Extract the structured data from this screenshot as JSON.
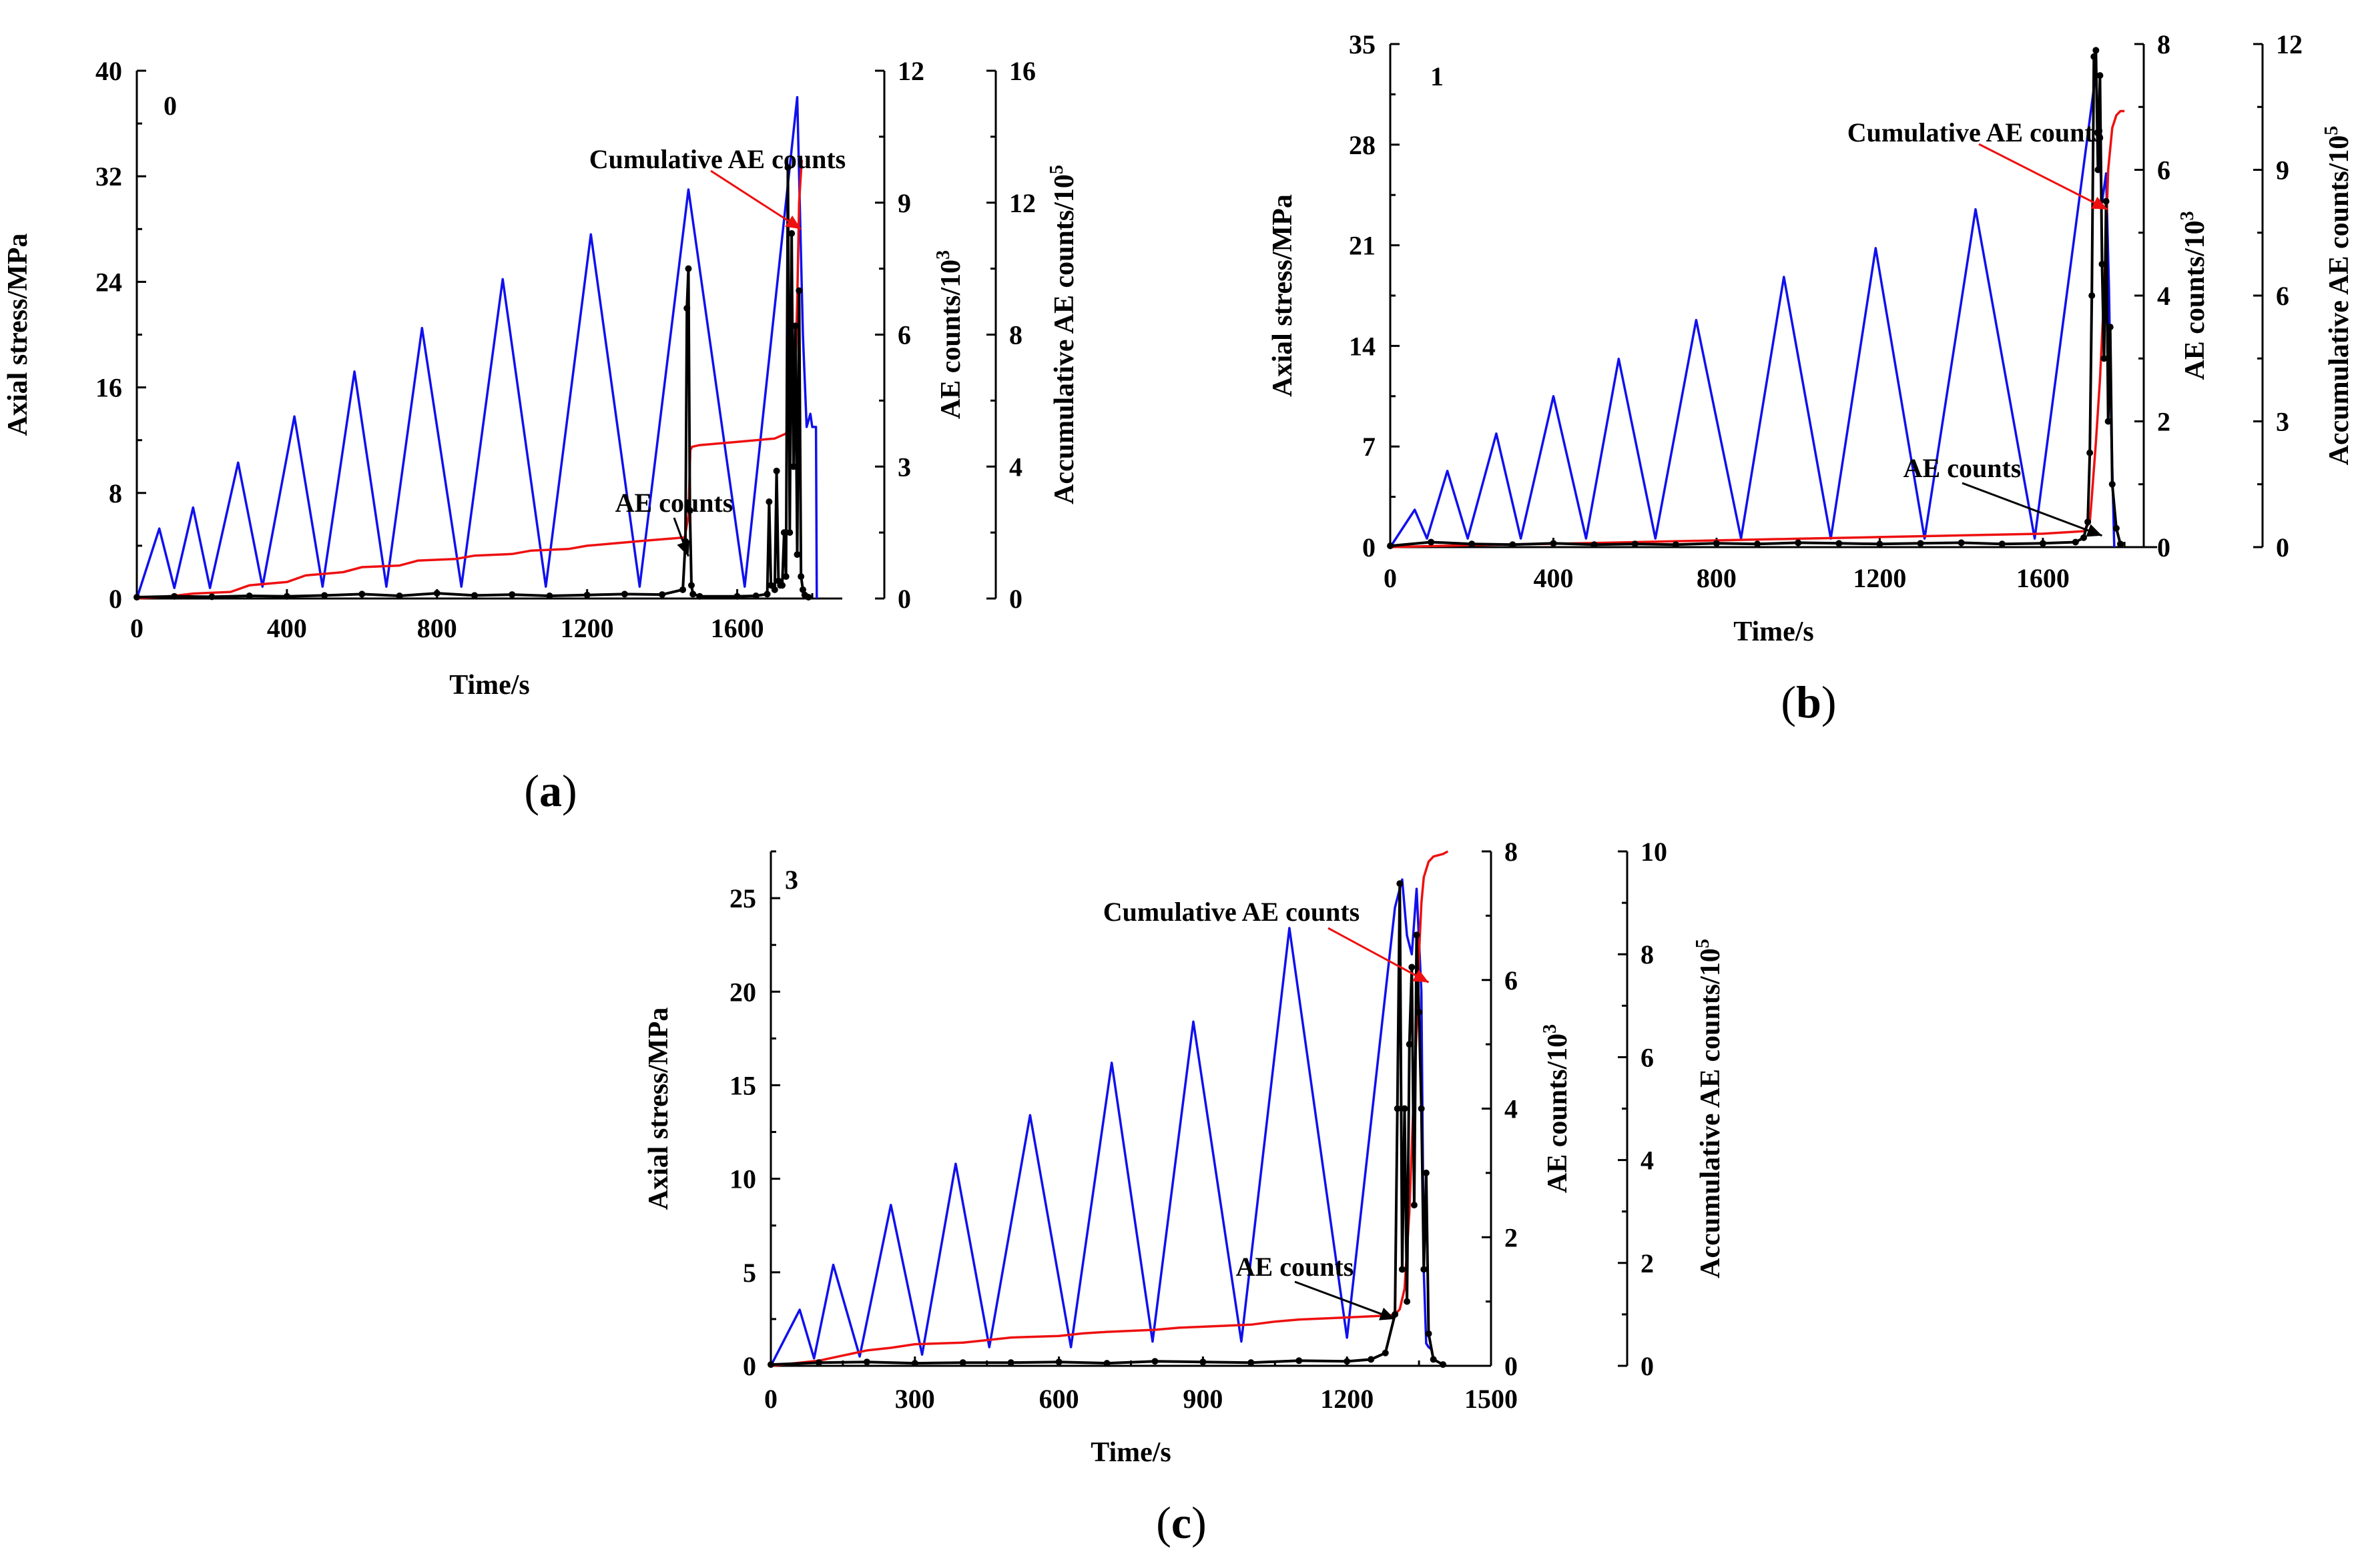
{
  "chart_data": [
    {
      "type": "line",
      "panel_caption": "(a)",
      "caption_parts": [
        "(",
        "a",
        ")"
      ],
      "panel_number": "0",
      "xlabel": "Time/s",
      "ylabel": "Axial stress/MPa",
      "y2label_main": "AE counts/10",
      "y2label_exp": "3",
      "y3label_main": "Accumulative AE counts/10",
      "y3label_exp": "5",
      "xlim": [
        0,
        1880
      ],
      "xticks": [
        "0",
        "400",
        "800",
        "1200",
        "1600"
      ],
      "xtick_values": [
        0,
        400,
        800,
        1200,
        1600
      ],
      "ylim": [
        0,
        40
      ],
      "yticks": [
        "0",
        "8",
        "16",
        "24",
        "32",
        "40"
      ],
      "ytick_values": [
        0,
        8,
        16,
        24,
        32,
        40
      ],
      "y2lim": [
        0,
        12
      ],
      "y2ticks": [
        "0",
        "3",
        "6",
        "9",
        "12"
      ],
      "y2tick_values": [
        0,
        3,
        6,
        9,
        12
      ],
      "y3lim": [
        0,
        16
      ],
      "y3ticks": [
        "0",
        "4",
        "8",
        "12",
        "16"
      ],
      "y3tick_values": [
        0,
        4,
        8,
        12,
        16
      ],
      "annotations": [
        "Cumulative AE counts",
        "AE counts"
      ],
      "annotation_targets": [
        {
          "x": 1770,
          "y": 28
        },
        {
          "x": 1470,
          "y": 3.2
        }
      ],
      "series": [
        {
          "name": "Axial stress",
          "color": "#1010ee",
          "axis": "left",
          "x": [
            0,
            60,
            100,
            150,
            195,
            270,
            335,
            420,
            495,
            580,
            665,
            760,
            865,
            975,
            1090,
            1210,
            1340,
            1470,
            1620,
            1760,
            1775,
            1785,
            1795,
            1800,
            1810,
            1812
          ],
          "values": [
            0,
            5.3,
            0.8,
            6.9,
            0.8,
            10.3,
            0.9,
            13.8,
            0.9,
            17.2,
            0.9,
            20.5,
            0.9,
            24.2,
            0.9,
            27.6,
            0.9,
            31.0,
            0.9,
            38.0,
            20.0,
            13.0,
            14.0,
            13.0,
            13.0,
            0
          ]
        },
        {
          "name": "Cumulative AE counts",
          "color": "#ee1010",
          "axis": "right2",
          "x": [
            0,
            100,
            150,
            250,
            300,
            400,
            450,
            550,
            600,
            700,
            750,
            850,
            900,
            1000,
            1050,
            1150,
            1200,
            1300,
            1350,
            1460,
            1470,
            1475,
            1480,
            1500,
            1600,
            1700,
            1730,
            1740,
            1755,
            1760,
            1765,
            1772
          ],
          "values": [
            0,
            0.08,
            0.15,
            0.2,
            0.4,
            0.5,
            0.7,
            0.8,
            0.95,
            1.0,
            1.15,
            1.2,
            1.3,
            1.35,
            1.45,
            1.5,
            1.6,
            1.7,
            1.75,
            1.85,
            2.5,
            4.5,
            4.6,
            4.65,
            4.75,
            4.85,
            5.0,
            5.4,
            7.0,
            9.0,
            12.0,
            13.3
          ]
        },
        {
          "name": "AE counts",
          "color": "#000000",
          "axis": "right1",
          "x": [
            0,
            100,
            200,
            300,
            400,
            500,
            600,
            700,
            800,
            900,
            1000,
            1100,
            1200,
            1300,
            1400,
            1455,
            1462,
            1466,
            1470,
            1474,
            1478,
            1482,
            1500,
            1600,
            1650,
            1680,
            1685,
            1690,
            1700,
            1705,
            1710,
            1715,
            1720,
            1725,
            1730,
            1735,
            1740,
            1745,
            1750,
            1755,
            1760,
            1765,
            1770,
            1775,
            1780,
            1790
          ],
          "values": [
            0.03,
            0.05,
            0.04,
            0.06,
            0.05,
            0.07,
            0.1,
            0.06,
            0.12,
            0.07,
            0.09,
            0.06,
            0.08,
            0.1,
            0.09,
            0.2,
            1.3,
            6.6,
            7.5,
            2.0,
            0.3,
            0.1,
            0.05,
            0.05,
            0.06,
            0.1,
            2.2,
            0.3,
            0.2,
            2.9,
            0.4,
            0.3,
            0.3,
            1.5,
            0.5,
            9.8,
            1.5,
            8.3,
            3.0,
            6.2,
            1.0,
            7.0,
            0.5,
            0.2,
            0.08,
            0.03
          ]
        }
      ]
    },
    {
      "type": "line",
      "panel_caption": "(b)",
      "caption_parts": [
        "(",
        "b",
        ")"
      ],
      "panel_number": "1",
      "xlabel": "Time/s",
      "ylabel": "Axial stress/MPa",
      "y2label_main": "AE counts/10",
      "y2label_exp": "3",
      "y3label_main": "Accumulative AE counts/10",
      "y3label_exp": "5",
      "xlim": [
        0,
        1880
      ],
      "xticks": [
        "0",
        "400",
        "800",
        "1200",
        "1600"
      ],
      "xtick_values": [
        0,
        400,
        800,
        1200,
        1600
      ],
      "ylim": [
        0,
        35
      ],
      "yticks": [
        "0",
        "7",
        "14",
        "21",
        "28",
        "35"
      ],
      "ytick_values": [
        0,
        7,
        14,
        21,
        28,
        35
      ],
      "y2lim": [
        0,
        8
      ],
      "y2ticks": [
        "0",
        "2",
        "4",
        "6",
        "8"
      ],
      "y2tick_values": [
        0,
        2,
        4,
        6,
        8
      ],
      "y3lim": [
        0,
        12
      ],
      "y3ticks": [
        "0",
        "3",
        "6",
        "9",
        "12"
      ],
      "y3tick_values": [
        0,
        3,
        6,
        9,
        12
      ],
      "annotations": [
        "Cumulative AE counts",
        "AE counts"
      ],
      "annotation_targets": [
        {
          "x": 1758,
          "y": 23.5
        },
        {
          "x": 1745,
          "y": 0.8
        }
      ],
      "series": [
        {
          "name": "Axial stress",
          "color": "#1010ee",
          "axis": "left",
          "x": [
            0,
            60,
            90,
            140,
            190,
            260,
            320,
            400,
            480,
            560,
            650,
            750,
            860,
            965,
            1080,
            1190,
            1310,
            1435,
            1580,
            1730,
            1745,
            1755,
            1762,
            1768,
            1775
          ],
          "values": [
            0,
            2.6,
            0.6,
            5.3,
            0.6,
            7.9,
            0.6,
            10.5,
            0.6,
            13.1,
            0.6,
            15.8,
            0.6,
            18.8,
            0.6,
            20.8,
            0.6,
            23.5,
            0.6,
            33.0,
            24.0,
            26.0,
            18.0,
            8.0,
            0
          ]
        },
        {
          "name": "Cumulative AE counts",
          "color": "#ee1010",
          "axis": "right2",
          "x": [
            0,
            200,
            400,
            600,
            800,
            1000,
            1200,
            1400,
            1600,
            1700,
            1715,
            1720,
            1730,
            1740,
            1750,
            1755,
            1760,
            1770,
            1780,
            1790,
            1800
          ],
          "values": [
            0,
            0.05,
            0.08,
            0.12,
            0.16,
            0.2,
            0.24,
            0.28,
            0.32,
            0.38,
            0.6,
            1.2,
            2.5,
            4.0,
            6.0,
            7.5,
            9.0,
            10.0,
            10.3,
            10.4,
            10.4
          ]
        },
        {
          "name": "AE counts",
          "color": "#000000",
          "axis": "right1",
          "x": [
            0,
            100,
            200,
            300,
            400,
            500,
            600,
            700,
            800,
            900,
            1000,
            1100,
            1200,
            1300,
            1400,
            1500,
            1600,
            1680,
            1700,
            1710,
            1715,
            1720,
            1725,
            1730,
            1735,
            1740,
            1745,
            1750,
            1755,
            1760,
            1765,
            1770,
            1780,
            1790
          ],
          "values": [
            0.02,
            0.08,
            0.05,
            0.04,
            0.06,
            0.04,
            0.05,
            0.04,
            0.06,
            0.05,
            0.07,
            0.06,
            0.05,
            0.06,
            0.07,
            0.05,
            0.06,
            0.08,
            0.15,
            0.4,
            1.5,
            4.0,
            7.8,
            7.9,
            6.0,
            7.5,
            4.5,
            3.0,
            5.5,
            2.0,
            3.5,
            1.0,
            0.3,
            0.05
          ]
        }
      ]
    },
    {
      "type": "line",
      "panel_caption": "(c)",
      "caption_parts": [
        "(",
        "c",
        ")"
      ],
      "panel_number": "3",
      "xlabel": "Time/s",
      "ylabel": "Axial stress/MPa",
      "y2label_main": "AE counts/10",
      "y2label_exp": "3",
      "y3label_main": "Accumulative AE counts/10",
      "y3label_exp": "5",
      "xlim": [
        0,
        1500
      ],
      "xticks": [
        "0",
        "300",
        "600",
        "900",
        "1200",
        "1500"
      ],
      "xtick_values": [
        0,
        300,
        600,
        900,
        1200,
        1500
      ],
      "ylim": [
        0,
        27.5
      ],
      "yticks": [
        "0",
        "5",
        "10",
        "15",
        "20",
        "25"
      ],
      "ytick_values": [
        0,
        5,
        10,
        15,
        20,
        25
      ],
      "y2lim": [
        0,
        8
      ],
      "y2ticks": [
        "0",
        "2",
        "4",
        "6",
        "8"
      ],
      "y2tick_values": [
        0,
        2,
        4,
        6,
        8
      ],
      "y3lim": [
        0,
        10
      ],
      "y3ticks": [
        "0",
        "2",
        "4",
        "6",
        "8",
        "10"
      ],
      "y3tick_values": [
        0,
        2,
        4,
        6,
        8,
        10
      ],
      "annotations": [
        "Cumulative AE counts",
        "AE counts"
      ],
      "annotation_targets": [
        {
          "x": 1370,
          "y": 20.5
        },
        {
          "x": 1300,
          "y": 2.5
        }
      ],
      "series": [
        {
          "name": "Axial stress",
          "color": "#1010ee",
          "axis": "left",
          "x": [
            0,
            60,
            90,
            130,
            185,
            250,
            315,
            385,
            455,
            540,
            625,
            710,
            795,
            880,
            980,
            1080,
            1200,
            1300,
            1315,
            1325,
            1335,
            1345,
            1355,
            1360,
            1365,
            1370,
            1375
          ],
          "values": [
            0,
            3.0,
            0.4,
            5.4,
            0.5,
            8.6,
            0.6,
            10.8,
            1.0,
            13.4,
            1.0,
            16.2,
            1.3,
            18.4,
            1.3,
            23.4,
            1.5,
            24.5,
            26.0,
            23.0,
            22.0,
            25.5,
            20.0,
            5.0,
            1.2,
            1.0,
            0.9
          ]
        },
        {
          "name": "Cumulative AE counts",
          "color": "#ee1010",
          "axis": "right2",
          "x": [
            0,
            100,
            150,
            200,
            250,
            300,
            400,
            450,
            500,
            600,
            650,
            700,
            800,
            850,
            900,
            1000,
            1050,
            1100,
            1200,
            1290,
            1300,
            1310,
            1320,
            1330,
            1340,
            1345,
            1350,
            1355,
            1360,
            1370,
            1380,
            1400,
            1410
          ],
          "values": [
            0,
            0.1,
            0.2,
            0.3,
            0.35,
            0.42,
            0.45,
            0.5,
            0.55,
            0.58,
            0.63,
            0.66,
            0.7,
            0.74,
            0.76,
            0.8,
            0.86,
            0.9,
            0.94,
            0.98,
            1.0,
            1.1,
            1.5,
            3.0,
            5.5,
            6.5,
            8.0,
            9.0,
            9.5,
            9.8,
            9.9,
            9.95,
            10.0
          ]
        },
        {
          "name": "AE counts",
          "color": "#000000",
          "axis": "right1",
          "x": [
            0,
            100,
            200,
            300,
            400,
            500,
            600,
            700,
            800,
            900,
            1000,
            1100,
            1200,
            1250,
            1280,
            1300,
            1305,
            1310,
            1315,
            1320,
            1325,
            1330,
            1335,
            1340,
            1345,
            1350,
            1355,
            1360,
            1365,
            1370,
            1380,
            1400
          ],
          "values": [
            0.02,
            0.05,
            0.06,
            0.04,
            0.05,
            0.05,
            0.06,
            0.04,
            0.07,
            0.06,
            0.05,
            0.08,
            0.07,
            0.1,
            0.2,
            0.8,
            4.0,
            7.5,
            1.5,
            4.0,
            1.0,
            5.0,
            6.2,
            2.5,
            6.7,
            5.5,
            4.0,
            1.5,
            3.0,
            0.5,
            0.1,
            0.02
          ]
        }
      ]
    }
  ]
}
